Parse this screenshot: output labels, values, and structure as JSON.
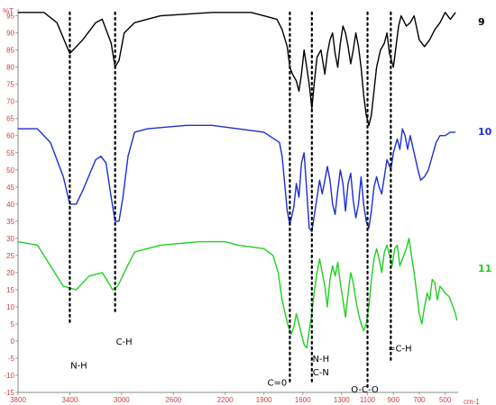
{
  "chart_data": {
    "type": "line",
    "title": "",
    "xlabel": "",
    "ylabel": "",
    "x_unit": "cm-1",
    "y_unit": "%T",
    "xlim": [
      3800,
      400
    ],
    "ylim": [
      -15,
      97
    ],
    "x_ticks": [
      3800,
      3400,
      3000,
      2600,
      2200,
      1900,
      1600,
      1300,
      1100,
      900,
      700,
      500
    ],
    "x_tick_labels": [
      "3800",
      "3400",
      "3000",
      "2600",
      "2200",
      "1900",
      "1600",
      "1300",
      "1100",
      "900",
      "700",
      "500"
    ],
    "y_ticks": [
      95,
      90,
      85,
      80,
      75,
      70,
      65,
      60,
      55,
      50,
      45,
      40,
      35,
      30,
      25,
      20,
      15,
      10,
      5,
      0,
      -5,
      -10,
      -15
    ],
    "series": [
      {
        "name": "9",
        "color": "#000000",
        "points": [
          [
            3800,
            96
          ],
          [
            3600,
            96
          ],
          [
            3500,
            93
          ],
          [
            3400,
            84
          ],
          [
            3300,
            88
          ],
          [
            3200,
            93
          ],
          [
            3150,
            94
          ],
          [
            3080,
            87
          ],
          [
            3050,
            80
          ],
          [
            3020,
            82
          ],
          [
            2980,
            90
          ],
          [
            2900,
            93
          ],
          [
            2700,
            95
          ],
          [
            2300,
            96
          ],
          [
            2000,
            96
          ],
          [
            1900,
            95
          ],
          [
            1800,
            94
          ],
          [
            1760,
            91
          ],
          [
            1720,
            86
          ],
          [
            1700,
            80
          ],
          [
            1680,
            78
          ],
          [
            1650,
            76
          ],
          [
            1630,
            73
          ],
          [
            1610,
            78
          ],
          [
            1590,
            85
          ],
          [
            1570,
            80
          ],
          [
            1550,
            75
          ],
          [
            1530,
            68
          ],
          [
            1510,
            76
          ],
          [
            1490,
            83
          ],
          [
            1460,
            85
          ],
          [
            1430,
            78
          ],
          [
            1410,
            84
          ],
          [
            1390,
            88
          ],
          [
            1370,
            90
          ],
          [
            1350,
            84
          ],
          [
            1330,
            80
          ],
          [
            1310,
            87
          ],
          [
            1290,
            92
          ],
          [
            1270,
            90
          ],
          [
            1250,
            86
          ],
          [
            1230,
            81
          ],
          [
            1210,
            85
          ],
          [
            1190,
            90
          ],
          [
            1170,
            86
          ],
          [
            1150,
            80
          ],
          [
            1130,
            72
          ],
          [
            1110,
            66
          ],
          [
            1090,
            63
          ],
          [
            1070,
            66
          ],
          [
            1050,
            73
          ],
          [
            1030,
            80
          ],
          [
            1000,
            85
          ],
          [
            970,
            87
          ],
          [
            950,
            90
          ],
          [
            930,
            84
          ],
          [
            900,
            80
          ],
          [
            880,
            86
          ],
          [
            860,
            92
          ],
          [
            840,
            95
          ],
          [
            800,
            92
          ],
          [
            770,
            93
          ],
          [
            740,
            95
          ],
          [
            700,
            88
          ],
          [
            660,
            86
          ],
          [
            620,
            88
          ],
          [
            580,
            91
          ],
          [
            540,
            93
          ],
          [
            500,
            96
          ],
          [
            460,
            94
          ],
          [
            420,
            96
          ]
        ]
      },
      {
        "name": "10",
        "color": "#1c2fd4",
        "points": [
          [
            3800,
            62
          ],
          [
            3650,
            62
          ],
          [
            3550,
            58
          ],
          [
            3450,
            48
          ],
          [
            3400,
            40
          ],
          [
            3350,
            40
          ],
          [
            3300,
            44
          ],
          [
            3200,
            53
          ],
          [
            3160,
            54
          ],
          [
            3120,
            52
          ],
          [
            3080,
            42
          ],
          [
            3050,
            35
          ],
          [
            3020,
            35
          ],
          [
            2990,
            42
          ],
          [
            2950,
            54
          ],
          [
            2900,
            61
          ],
          [
            2800,
            62
          ],
          [
            2500,
            63
          ],
          [
            2300,
            63
          ],
          [
            2100,
            62
          ],
          [
            1900,
            61
          ],
          [
            1780,
            58
          ],
          [
            1760,
            54
          ],
          [
            1740,
            46
          ],
          [
            1720,
            38
          ],
          [
            1700,
            34
          ],
          [
            1670,
            39
          ],
          [
            1650,
            46
          ],
          [
            1630,
            42
          ],
          [
            1610,
            52
          ],
          [
            1590,
            55
          ],
          [
            1570,
            44
          ],
          [
            1550,
            33
          ],
          [
            1530,
            32
          ],
          [
            1510,
            37
          ],
          [
            1490,
            42
          ],
          [
            1470,
            47
          ],
          [
            1450,
            43
          ],
          [
            1430,
            47
          ],
          [
            1410,
            51
          ],
          [
            1390,
            47
          ],
          [
            1370,
            40
          ],
          [
            1350,
            37
          ],
          [
            1330,
            44
          ],
          [
            1310,
            50
          ],
          [
            1290,
            46
          ],
          [
            1270,
            38
          ],
          [
            1250,
            46
          ],
          [
            1230,
            49
          ],
          [
            1210,
            41
          ],
          [
            1190,
            36
          ],
          [
            1170,
            40
          ],
          [
            1150,
            48
          ],
          [
            1130,
            40
          ],
          [
            1110,
            35
          ],
          [
            1090,
            33
          ],
          [
            1070,
            38
          ],
          [
            1050,
            45
          ],
          [
            1030,
            48
          ],
          [
            1010,
            45
          ],
          [
            990,
            43
          ],
          [
            970,
            48
          ],
          [
            950,
            53
          ],
          [
            920,
            50
          ],
          [
            900,
            55
          ],
          [
            870,
            59
          ],
          [
            850,
            56
          ],
          [
            830,
            62
          ],
          [
            810,
            60
          ],
          [
            790,
            56
          ],
          [
            770,
            60
          ],
          [
            740,
            55
          ],
          [
            710,
            50
          ],
          [
            690,
            47
          ],
          [
            660,
            48
          ],
          [
            630,
            50
          ],
          [
            600,
            54
          ],
          [
            570,
            58
          ],
          [
            540,
            60
          ],
          [
            500,
            60
          ],
          [
            460,
            61
          ],
          [
            420,
            61
          ]
        ]
      },
      {
        "name": "11",
        "color": "#1fd11f",
        "points": [
          [
            3800,
            29
          ],
          [
            3650,
            28
          ],
          [
            3550,
            22
          ],
          [
            3450,
            16
          ],
          [
            3350,
            15
          ],
          [
            3250,
            19
          ],
          [
            3150,
            20
          ],
          [
            3100,
            17
          ],
          [
            3070,
            15
          ],
          [
            3030,
            16
          ],
          [
            2980,
            20
          ],
          [
            2900,
            26
          ],
          [
            2700,
            28
          ],
          [
            2400,
            29
          ],
          [
            2200,
            29
          ],
          [
            2100,
            28
          ],
          [
            1900,
            27
          ],
          [
            1830,
            25
          ],
          [
            1790,
            20
          ],
          [
            1760,
            12
          ],
          [
            1730,
            7
          ],
          [
            1710,
            4
          ],
          [
            1690,
            2
          ],
          [
            1670,
            4
          ],
          [
            1650,
            8
          ],
          [
            1630,
            5
          ],
          [
            1610,
            2
          ],
          [
            1590,
            -1
          ],
          [
            1570,
            -2
          ],
          [
            1550,
            3
          ],
          [
            1530,
            8
          ],
          [
            1510,
            15
          ],
          [
            1490,
            20
          ],
          [
            1470,
            24
          ],
          [
            1450,
            20
          ],
          [
            1430,
            16
          ],
          [
            1410,
            10
          ],
          [
            1390,
            18
          ],
          [
            1370,
            22
          ],
          [
            1350,
            19
          ],
          [
            1330,
            23
          ],
          [
            1310,
            17
          ],
          [
            1290,
            12
          ],
          [
            1270,
            7
          ],
          [
            1250,
            14
          ],
          [
            1230,
            20
          ],
          [
            1210,
            17
          ],
          [
            1190,
            12
          ],
          [
            1170,
            8
          ],
          [
            1150,
            5
          ],
          [
            1130,
            3
          ],
          [
            1110,
            5
          ],
          [
            1090,
            10
          ],
          [
            1070,
            18
          ],
          [
            1050,
            24
          ],
          [
            1030,
            27
          ],
          [
            1010,
            24
          ],
          [
            990,
            20
          ],
          [
            970,
            26
          ],
          [
            950,
            28
          ],
          [
            930,
            25
          ],
          [
            910,
            22
          ],
          [
            890,
            27
          ],
          [
            870,
            28
          ],
          [
            850,
            22
          ],
          [
            830,
            24
          ],
          [
            800,
            27
          ],
          [
            780,
            30
          ],
          [
            760,
            25
          ],
          [
            740,
            20
          ],
          [
            720,
            14
          ],
          [
            700,
            8
          ],
          [
            680,
            5
          ],
          [
            660,
            10
          ],
          [
            640,
            14
          ],
          [
            620,
            12
          ],
          [
            600,
            18
          ],
          [
            580,
            17
          ],
          [
            560,
            12
          ],
          [
            540,
            16
          ],
          [
            520,
            15
          ],
          [
            500,
            14
          ],
          [
            470,
            13
          ],
          [
            440,
            10
          ],
          [
            420,
            8
          ],
          [
            410,
            6
          ]
        ]
      }
    ],
    "annotations": [
      {
        "label": "N-H",
        "x": 3400,
        "line_top": 96,
        "line_bottom": 5,
        "label_y": -8
      },
      {
        "label": "C-H",
        "x": 3050,
        "line_top": 96,
        "line_bottom": 8,
        "label_y": -1
      },
      {
        "label": "C=0",
        "x": 1700,
        "line_top": 96,
        "line_bottom": -12,
        "label_y": -13
      },
      {
        "label": "N-H",
        "x": 1530,
        "line_top": 96,
        "line_bottom": -12,
        "label_y": -6
      },
      {
        "label": "C-N",
        "x": 1530,
        "line_top": 96,
        "line_bottom": -12,
        "label_y": -10
      },
      {
        "label": "O-C-O",
        "x": 1100,
        "line_top": 96,
        "line_bottom": -14,
        "label_y": -15
      },
      {
        "label": "=C-H",
        "x": 920,
        "line_top": 96,
        "line_bottom": -6,
        "label_y": -3
      }
    ],
    "grid": false,
    "legend": "right"
  },
  "series_labels": [
    "9",
    "10",
    "11"
  ]
}
